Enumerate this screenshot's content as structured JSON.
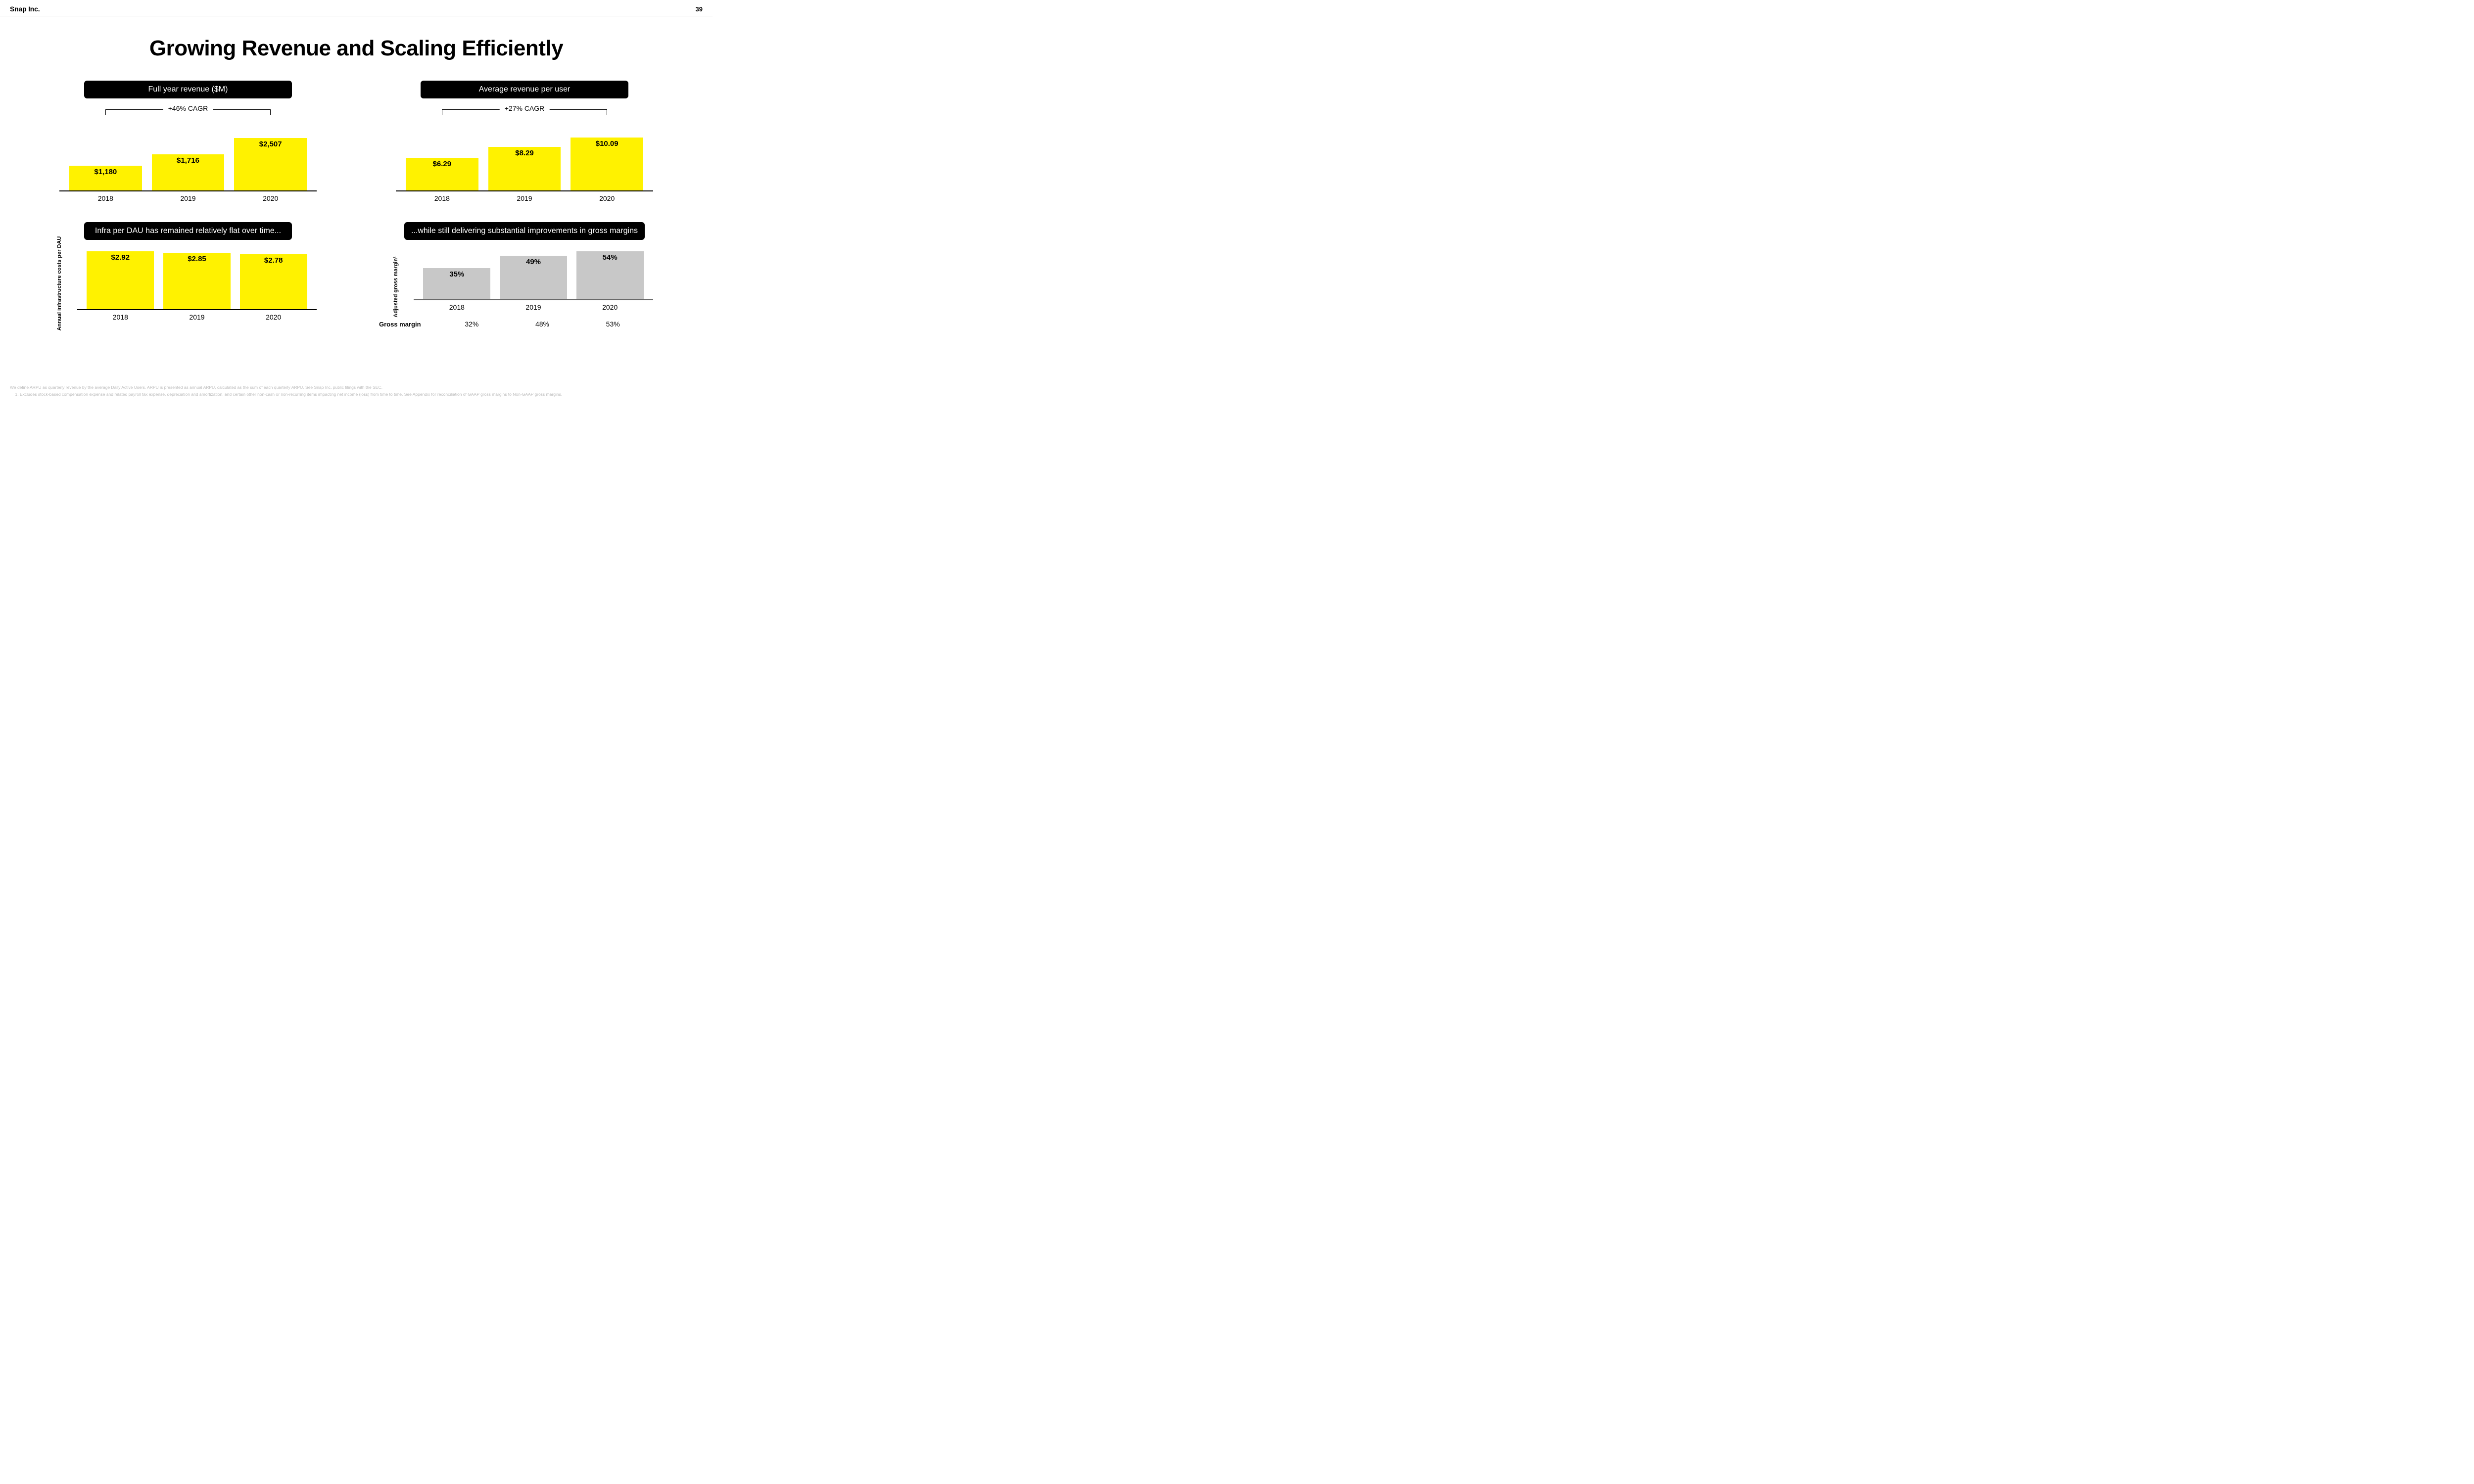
{
  "header": {
    "logo": "Snap Inc.",
    "page_number": "39"
  },
  "title": "Growing Revenue and Scaling Efficiently",
  "colors": {
    "bar_yellow": "#fff200",
    "bar_grey": "#c8c8c8",
    "banner_bg": "#000000",
    "banner_fg": "#ffffff",
    "text": "#000000",
    "footer_text": "#bfbfbf",
    "axis": "#000000"
  },
  "charts": {
    "revenue": {
      "type": "bar",
      "banner": "Full year revenue ($M)",
      "cagr": "+46% CAGR",
      "categories": [
        "2018",
        "2019",
        "2020"
      ],
      "labels": [
        "$1,180",
        "$1,716",
        "$2,507"
      ],
      "values": [
        1180,
        1716,
        2507
      ],
      "ymax": 3500,
      "bar_color": "#fff200",
      "label_fontsize": 15
    },
    "arpu": {
      "type": "bar",
      "banner": "Average revenue per user",
      "cagr": "+27% CAGR",
      "categories": [
        "2018",
        "2019",
        "2020"
      ],
      "labels": [
        "$6.29",
        "$8.29",
        "$10.09"
      ],
      "values": [
        6.29,
        8.29,
        10.09
      ],
      "ymax": 14,
      "bar_color": "#fff200",
      "label_fontsize": 15
    },
    "infra": {
      "type": "bar",
      "banner": "Infra per DAU has remained relatively flat over time...",
      "axis_label": "Annual infrastructure costs per DAU",
      "categories": [
        "2018",
        "2019",
        "2020"
      ],
      "labels": [
        "$2.92",
        "$2.85",
        "$2.78"
      ],
      "values": [
        2.92,
        2.85,
        2.78
      ],
      "ymax": 3.2,
      "bar_color": "#fff200",
      "label_fontsize": 15
    },
    "margin": {
      "type": "bar",
      "banner": "...while still delivering substantial improvements in gross margins",
      "axis_label": "Adjusted gross margin¹",
      "categories": [
        "2018",
        "2019",
        "2020"
      ],
      "labels": [
        "35%",
        "49%",
        "54%"
      ],
      "values": [
        35,
        49,
        54
      ],
      "ymax": 60,
      "bar_color": "#c8c8c8",
      "label_fontsize": 15,
      "gross_margin_title": "Gross margin",
      "gross_margin_values": [
        "32%",
        "48%",
        "53%"
      ]
    }
  },
  "footer": {
    "line1": "We define ARPU as quarterly revenue by the average Daily Active Users. ARPU is presented as annual ARPU, calculated as the sum of each quarterly ARPU. See Snap Inc. public filings with the SEC.",
    "note1": "Excludes stock-based compensation expense and related payroll tax expense, depreciation and amortization, and certain other non-cash or non-recurring items impacting net income (loss) from time to time. See Appendix for reconciliation of GAAP gross margins to Non-GAAP gross margins."
  }
}
